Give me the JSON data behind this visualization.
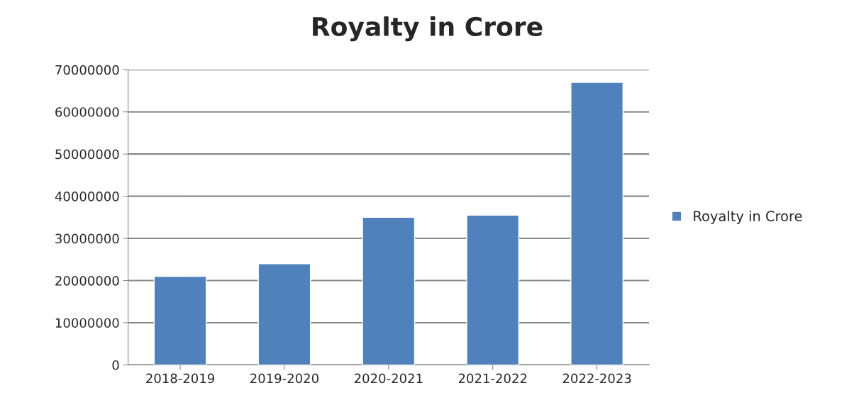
{
  "chart_data": {
    "type": "bar",
    "title": "Royalty in Crore",
    "categories": [
      "2018-2019",
      "2019-2020",
      "2020-2021",
      "2021-2022",
      "2022-2023"
    ],
    "series": [
      {
        "name": "Royalty in Crore",
        "color": "#4f81bd",
        "values": [
          21000000,
          24000000,
          35000000,
          35500000,
          67000000
        ]
      }
    ],
    "ylim": [
      0,
      70000000
    ],
    "yticks": [
      0,
      10000000,
      20000000,
      30000000,
      40000000,
      50000000,
      60000000,
      70000000
    ],
    "grid": "y",
    "legend": "right"
  }
}
